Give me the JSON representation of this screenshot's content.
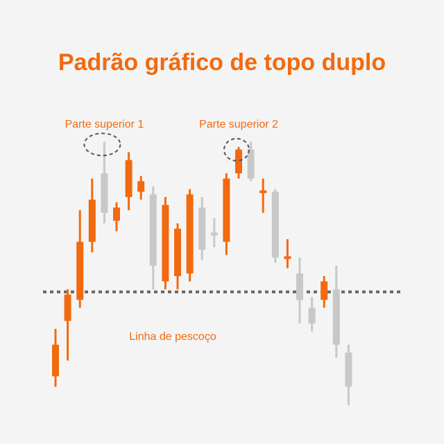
{
  "colors": {
    "background": "#f4f4f4",
    "bullish": "#f26a0f",
    "bearish": "#c8c8c8",
    "accent": "#f26a0f",
    "neckline": "#666666",
    "highlight_ring": "#555555"
  },
  "chart_data": {
    "type": "candlestick",
    "title": "Padrão gráfico de topo duplo",
    "xlabel": "",
    "ylabel": "",
    "grid": false,
    "ylim": [
      0,
      100
    ],
    "candles": [
      {
        "dir": "up",
        "open": 12,
        "close": 24,
        "high": 30,
        "low": 8
      },
      {
        "dir": "up",
        "open": 33,
        "close": 43,
        "high": 45,
        "low": 18
      },
      {
        "dir": "up",
        "open": 41,
        "close": 63,
        "high": 75,
        "low": 38
      },
      {
        "dir": "up",
        "open": 63,
        "close": 79,
        "high": 87,
        "low": 59
      },
      {
        "dir": "down",
        "open": 89,
        "close": 74,
        "high": 101,
        "low": 70
      },
      {
        "dir": "up",
        "open": 71,
        "close": 76,
        "high": 78,
        "low": 67
      },
      {
        "dir": "up",
        "open": 80,
        "close": 94,
        "high": 97,
        "low": 75
      },
      {
        "dir": "up",
        "open": 82,
        "close": 86,
        "high": 88,
        "low": 79
      },
      {
        "dir": "down",
        "open": 81,
        "close": 54,
        "high": 84,
        "low": 45
      },
      {
        "dir": "up",
        "open": 48,
        "close": 77,
        "high": 80,
        "low": 45
      },
      {
        "dir": "up",
        "open": 50,
        "close": 68,
        "high": 70,
        "low": 45
      },
      {
        "dir": "up",
        "open": 51,
        "close": 81,
        "high": 83,
        "low": 48
      },
      {
        "dir": "down",
        "open": 76,
        "close": 60,
        "high": 80,
        "low": 56
      },
      {
        "dir": "neutral",
        "open": 66,
        "close": 66,
        "high": 72,
        "low": 61
      },
      {
        "dir": "up",
        "open": 63,
        "close": 87,
        "high": 89,
        "low": 58
      },
      {
        "dir": "up",
        "open": 89,
        "close": 98,
        "high": 99,
        "low": 87
      },
      {
        "dir": "down",
        "open": 98,
        "close": 87,
        "high": 101,
        "low": 86
      },
      {
        "dir": "up",
        "open": 82,
        "close": 82,
        "high": 87,
        "low": 74
      },
      {
        "dir": "down",
        "open": 82,
        "close": 57,
        "high": 83,
        "low": 55
      },
      {
        "dir": "up",
        "open": 57,
        "close": 57,
        "high": 64,
        "low": 53
      },
      {
        "dir": "down",
        "open": 51,
        "close": 41,
        "high": 57,
        "low": 32
      },
      {
        "dir": "down",
        "open": 38,
        "close": 32,
        "high": 42,
        "low": 29
      },
      {
        "dir": "up",
        "open": 41,
        "close": 48,
        "high": 50,
        "low": 38
      },
      {
        "dir": "down",
        "open": 45,
        "close": 24,
        "high": 54,
        "low": 19
      },
      {
        "dir": "down",
        "open": 21,
        "close": 8,
        "high": 24,
        "low": 1
      }
    ],
    "neckline": {
      "value": 44,
      "label": "Linha de pescoço"
    },
    "annotations": [
      {
        "label": "Parte superior 1",
        "candle_index": 4
      },
      {
        "label": "Parte superior 2",
        "candle_index": 15
      }
    ]
  }
}
